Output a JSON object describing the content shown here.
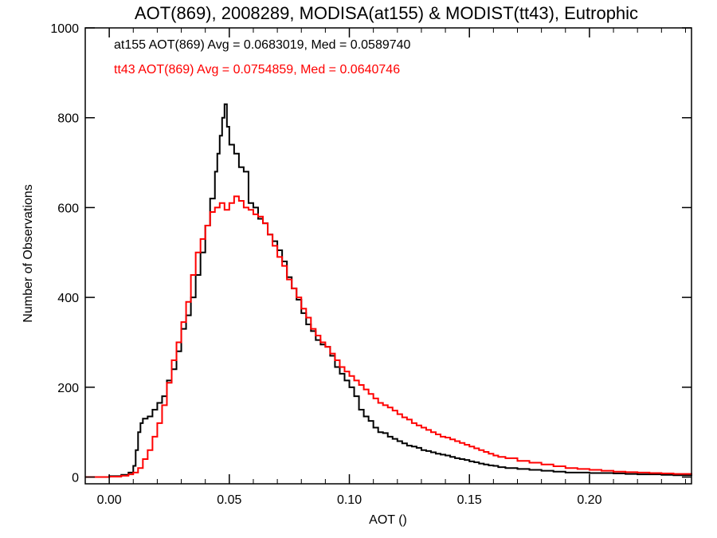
{
  "chart_data": {
    "type": "line",
    "title": "AOT(869), 2008289, MODISA(at155) & MODIST(tt43), Eutrophic",
    "xlabel": "AOT ()",
    "ylabel": "Number of Observations",
    "xlim": [
      -0.01,
      0.2425
    ],
    "ylim": [
      -15,
      1000
    ],
    "x_ticks": [
      0.0,
      0.05,
      0.1,
      0.15,
      0.2
    ],
    "x_tick_labels": [
      "0.00",
      "0.05",
      "0.10",
      "0.15",
      "0.20"
    ],
    "y_ticks": [
      0,
      200,
      400,
      600,
      800,
      1000
    ],
    "y_tick_labels": [
      "0",
      "200",
      "400",
      "600",
      "800",
      "1000"
    ],
    "step": "histogram",
    "grid": false,
    "legend": "top-left, text annotations",
    "annotations": [
      {
        "text": "at155 AOT(869) Avg = 0.0683019, Med = 0.0589740",
        "color": "#000000"
      },
      {
        "text": "tt43 AOT(869) Avg = 0.0754859, Med = 0.0640746",
        "color": "#ff0000"
      }
    ],
    "series": [
      {
        "color": "#000000",
        "points": [
          [
            -0.01,
            0
          ],
          [
            0.0,
            2
          ],
          [
            0.005,
            5
          ],
          [
            0.008,
            10
          ],
          [
            0.01,
            25
          ],
          [
            0.011,
            60
          ],
          [
            0.012,
            100
          ],
          [
            0.013,
            120
          ],
          [
            0.014,
            130
          ],
          [
            0.016,
            135
          ],
          [
            0.018,
            150
          ],
          [
            0.02,
            165
          ],
          [
            0.022,
            180
          ],
          [
            0.024,
            215
          ],
          [
            0.026,
            240
          ],
          [
            0.028,
            280
          ],
          [
            0.03,
            330
          ],
          [
            0.032,
            360
          ],
          [
            0.034,
            400
          ],
          [
            0.036,
            450
          ],
          [
            0.038,
            500
          ],
          [
            0.04,
            560
          ],
          [
            0.042,
            620
          ],
          [
            0.044,
            680
          ],
          [
            0.045,
            720
          ],
          [
            0.046,
            760
          ],
          [
            0.047,
            800
          ],
          [
            0.048,
            830
          ],
          [
            0.049,
            780
          ],
          [
            0.05,
            740
          ],
          [
            0.052,
            720
          ],
          [
            0.054,
            690
          ],
          [
            0.056,
            680
          ],
          [
            0.058,
            610
          ],
          [
            0.06,
            600
          ],
          [
            0.062,
            575
          ],
          [
            0.064,
            565
          ],
          [
            0.066,
            540
          ],
          [
            0.068,
            525
          ],
          [
            0.07,
            505
          ],
          [
            0.072,
            480
          ],
          [
            0.074,
            445
          ],
          [
            0.076,
            420
          ],
          [
            0.078,
            395
          ],
          [
            0.08,
            365
          ],
          [
            0.082,
            340
          ],
          [
            0.084,
            325
          ],
          [
            0.086,
            305
          ],
          [
            0.088,
            295
          ],
          [
            0.09,
            290
          ],
          [
            0.092,
            270
          ],
          [
            0.094,
            245
          ],
          [
            0.096,
            230
          ],
          [
            0.098,
            215
          ],
          [
            0.1,
            200
          ],
          [
            0.102,
            180
          ],
          [
            0.104,
            150
          ],
          [
            0.106,
            135
          ],
          [
            0.108,
            125
          ],
          [
            0.11,
            110
          ],
          [
            0.112,
            100
          ],
          [
            0.114,
            98
          ],
          [
            0.116,
            90
          ],
          [
            0.118,
            85
          ],
          [
            0.12,
            80
          ],
          [
            0.122,
            75
          ],
          [
            0.124,
            70
          ],
          [
            0.126,
            68
          ],
          [
            0.128,
            65
          ],
          [
            0.13,
            60
          ],
          [
            0.132,
            58
          ],
          [
            0.134,
            55
          ],
          [
            0.136,
            52
          ],
          [
            0.138,
            50
          ],
          [
            0.14,
            48
          ],
          [
            0.142,
            45
          ],
          [
            0.144,
            42
          ],
          [
            0.146,
            40
          ],
          [
            0.148,
            38
          ],
          [
            0.15,
            35
          ],
          [
            0.152,
            33
          ],
          [
            0.154,
            30
          ],
          [
            0.156,
            28
          ],
          [
            0.158,
            26
          ],
          [
            0.16,
            25
          ],
          [
            0.162,
            22
          ],
          [
            0.165,
            20
          ],
          [
            0.17,
            18
          ],
          [
            0.175,
            16
          ],
          [
            0.18,
            14
          ],
          [
            0.185,
            12
          ],
          [
            0.19,
            10
          ],
          [
            0.195,
            10
          ],
          [
            0.2,
            9
          ],
          [
            0.205,
            9
          ],
          [
            0.21,
            8
          ],
          [
            0.215,
            7
          ],
          [
            0.22,
            6
          ],
          [
            0.225,
            6
          ],
          [
            0.23,
            5
          ],
          [
            0.235,
            4
          ],
          [
            0.2425,
            3
          ]
        ]
      },
      {
        "color": "#ff0000",
        "points": [
          [
            -0.01,
            0
          ],
          [
            0.0,
            1
          ],
          [
            0.005,
            3
          ],
          [
            0.008,
            6
          ],
          [
            0.01,
            10
          ],
          [
            0.012,
            20
          ],
          [
            0.014,
            40
          ],
          [
            0.016,
            60
          ],
          [
            0.018,
            90
          ],
          [
            0.02,
            120
          ],
          [
            0.022,
            160
          ],
          [
            0.024,
            210
          ],
          [
            0.026,
            260
          ],
          [
            0.028,
            300
          ],
          [
            0.03,
            345
          ],
          [
            0.032,
            390
          ],
          [
            0.034,
            450
          ],
          [
            0.036,
            500
          ],
          [
            0.038,
            530
          ],
          [
            0.04,
            560
          ],
          [
            0.042,
            590
          ],
          [
            0.044,
            600
          ],
          [
            0.046,
            610
          ],
          [
            0.048,
            595
          ],
          [
            0.05,
            610
          ],
          [
            0.052,
            625
          ],
          [
            0.054,
            615
          ],
          [
            0.056,
            600
          ],
          [
            0.058,
            595
          ],
          [
            0.06,
            585
          ],
          [
            0.062,
            580
          ],
          [
            0.064,
            565
          ],
          [
            0.066,
            540
          ],
          [
            0.068,
            515
          ],
          [
            0.07,
            490
          ],
          [
            0.072,
            470
          ],
          [
            0.074,
            440
          ],
          [
            0.076,
            420
          ],
          [
            0.078,
            400
          ],
          [
            0.08,
            375
          ],
          [
            0.082,
            355
          ],
          [
            0.084,
            330
          ],
          [
            0.086,
            315
          ],
          [
            0.088,
            300
          ],
          [
            0.09,
            290
          ],
          [
            0.092,
            275
          ],
          [
            0.094,
            260
          ],
          [
            0.096,
            245
          ],
          [
            0.098,
            235
          ],
          [
            0.1,
            225
          ],
          [
            0.102,
            215
          ],
          [
            0.104,
            205
          ],
          [
            0.106,
            195
          ],
          [
            0.108,
            185
          ],
          [
            0.11,
            175
          ],
          [
            0.112,
            165
          ],
          [
            0.114,
            160
          ],
          [
            0.116,
            155
          ],
          [
            0.118,
            148
          ],
          [
            0.12,
            140
          ],
          [
            0.122,
            133
          ],
          [
            0.124,
            128
          ],
          [
            0.126,
            120
          ],
          [
            0.128,
            115
          ],
          [
            0.13,
            110
          ],
          [
            0.132,
            105
          ],
          [
            0.134,
            100
          ],
          [
            0.136,
            95
          ],
          [
            0.138,
            90
          ],
          [
            0.14,
            88
          ],
          [
            0.142,
            84
          ],
          [
            0.144,
            80
          ],
          [
            0.146,
            76
          ],
          [
            0.148,
            72
          ],
          [
            0.15,
            68
          ],
          [
            0.152,
            64
          ],
          [
            0.154,
            60
          ],
          [
            0.156,
            56
          ],
          [
            0.158,
            52
          ],
          [
            0.16,
            48
          ],
          [
            0.162,
            45
          ],
          [
            0.165,
            42
          ],
          [
            0.17,
            36
          ],
          [
            0.175,
            32
          ],
          [
            0.18,
            28
          ],
          [
            0.185,
            24
          ],
          [
            0.19,
            20
          ],
          [
            0.195,
            18
          ],
          [
            0.2,
            16
          ],
          [
            0.205,
            14
          ],
          [
            0.21,
            12
          ],
          [
            0.215,
            11
          ],
          [
            0.22,
            10
          ],
          [
            0.225,
            9
          ],
          [
            0.23,
            8
          ],
          [
            0.235,
            7
          ],
          [
            0.2425,
            5
          ]
        ]
      }
    ]
  }
}
